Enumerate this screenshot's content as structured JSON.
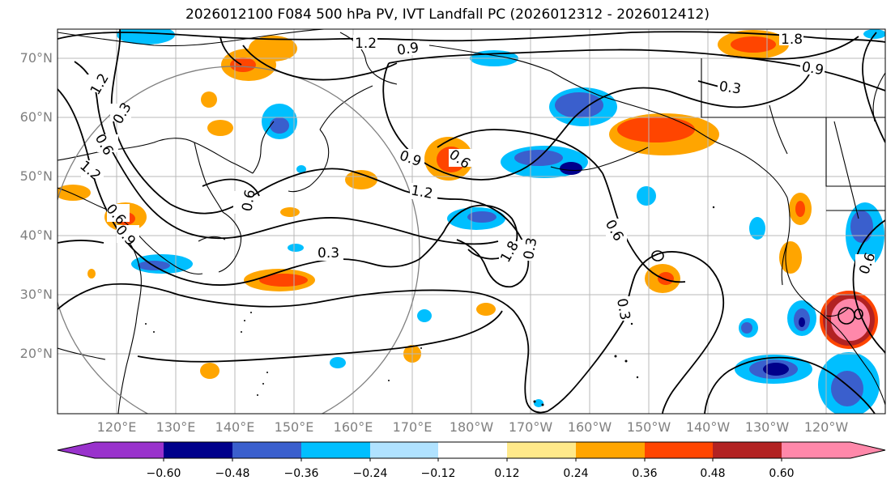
{
  "title": "2026012100 F084 500 hPa PV, IVT Landfall PC (2026012312 - 2026012412)",
  "lat_labels": [
    "70°N",
    "60°N",
    "50°N",
    "40°N",
    "30°N",
    "20°N"
  ],
  "lon_labels": [
    "120°E",
    "130°E",
    "140°E",
    "150°E",
    "160°E",
    "170°E",
    "180°W",
    "170°W",
    "160°W",
    "150°W",
    "140°W",
    "130°W",
    "120°W"
  ],
  "contour_labels": [
    "1.2",
    "0.9",
    "1.8",
    "0.9",
    "0.3",
    "1.2",
    "0.3",
    "0.6",
    "1.2",
    "0.6",
    "0.9",
    "0.6",
    "0.9",
    "1.2",
    "0.6",
    "0.3",
    "1.8",
    "0.3",
    "0.6",
    "0.3",
    "0.6"
  ],
  "colorbar": {
    "ticks": [
      "−0.60",
      "−0.48",
      "−0.36",
      "−0.24",
      "−0.12",
      "0.12",
      "0.24",
      "0.36",
      "0.48",
      "0.60"
    ],
    "colors": [
      "#9932cc",
      "#00008b",
      "#3a5fcd",
      "#00bfff",
      "#b0e2ff",
      "#ffffff",
      "#ffe98a",
      "#ffa500",
      "#ff4500",
      "#b22222",
      "#ff88aa"
    ]
  }
}
